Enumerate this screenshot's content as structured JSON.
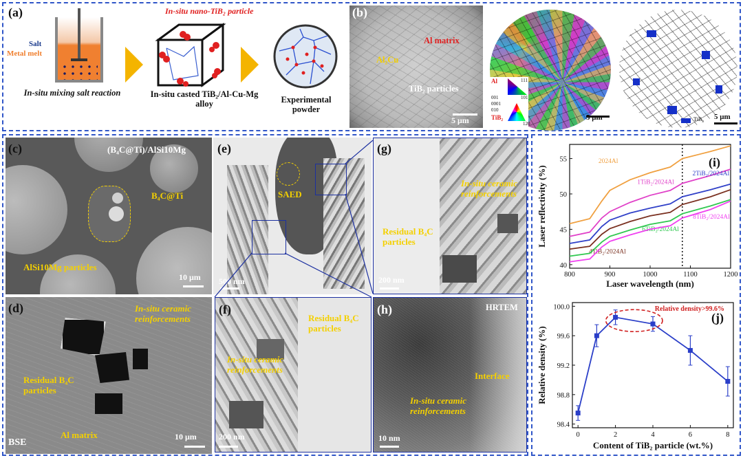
{
  "panel_a": {
    "label": "(a)",
    "salt": "Salt",
    "metal_melt": "Metal melt",
    "particle_label": "In-situ nano-TiB₂ particle",
    "step1": "In-situ mixing salt reaction",
    "step2": "In-situ casted TiB₂/Al-Cu-Mg alloy",
    "step3": "Experimental powder"
  },
  "panel_b": {
    "label": "(b)",
    "al_matrix": "Al matrix",
    "al2cu": "Al₂Cu",
    "tib2": "TiB₂ particles",
    "scale": "5 μm",
    "ebsd_al": "Al",
    "ebsd_tib2": "TiB₂",
    "ipf_001": "001",
    "ipf_101": "101",
    "ipf_111": "111",
    "ipf_0001": "0001",
    "ipf_010": "010",
    "ipf_120": "120",
    "scale2": "5 μm",
    "legend": "TiB₂",
    "scale3": "5 μm"
  },
  "panel_c": {
    "label": "(c)",
    "title": "(B₄C@Ti)/AlSi10Mg",
    "b4c": "B₄C@Ti",
    "alsi": "AlSi10Mg particles",
    "scale": "10 μm"
  },
  "panel_d": {
    "label": "(d)",
    "insitu": "In-situ ceramic reinforcements",
    "residual": "Residual B₄C particles",
    "matrix": "Al matrix",
    "bse": "BSE",
    "scale": "10 μm"
  },
  "panel_e": {
    "label": "(e)",
    "saed": "SAED",
    "scale": "500 nm"
  },
  "panel_f": {
    "label": "(f)",
    "residual": "Residual B₄C particles",
    "insitu": "In-situ ceramic reinforcements",
    "scale": "200 nm"
  },
  "panel_g": {
    "label": "(g)",
    "insitu": "In-situ ceramic reinforcements",
    "residual": "Residual B₄C particles",
    "scale": "200 nm"
  },
  "panel_h": {
    "label": "(h)",
    "hrtem": "HRTEM",
    "interface": "Interface",
    "insitu": "In-situ ceramic reinforcements",
    "scale": "10 nm"
  },
  "chart_i_label": "(i)",
  "chart_j_label": "(j)",
  "chart_data": [
    {
      "type": "line",
      "xlabel": "Laser wavelength (nm)",
      "ylabel": "Laser reflectivity (%)",
      "xlim": [
        800,
        1200
      ],
      "ylim": [
        39.5,
        57
      ],
      "xticks": [
        800,
        900,
        1000,
        1100,
        1200
      ],
      "yticks": [
        40,
        45,
        50,
        55
      ],
      "vline_x": 1080,
      "x": [
        800,
        850,
        880,
        900,
        950,
        1000,
        1050,
        1080,
        1150,
        1200
      ],
      "series": [
        {
          "name": "2024Al",
          "color": "#f0a040",
          "values": [
            45.8,
            46.5,
            49.0,
            50.5,
            52.0,
            53.0,
            53.8,
            55.0,
            56.0,
            56.8
          ]
        },
        {
          "name": "1TiB₂/2024Al",
          "color": "#e040c8",
          "values": [
            44.0,
            44.6,
            46.6,
            47.5,
            48.8,
            49.8,
            50.5,
            51.5,
            52.6,
            53.5
          ]
        },
        {
          "name": "2TiB₂/2024Al",
          "color": "#3040c8",
          "values": [
            43.0,
            43.5,
            45.4,
            46.3,
            47.3,
            48.0,
            48.6,
            49.6,
            50.6,
            51.4
          ]
        },
        {
          "name": "4TiB₂/2024Al",
          "color": "#7a3020",
          "values": [
            42.2,
            42.6,
            44.3,
            45.1,
            46.1,
            46.9,
            47.4,
            48.5,
            49.6,
            50.6
          ]
        },
        {
          "name": "6TiB₂/2024Al",
          "color": "#30c850",
          "values": [
            41.2,
            41.6,
            43.2,
            44.0,
            44.9,
            45.7,
            46.2,
            47.2,
            48.3,
            49.2
          ]
        },
        {
          "name": "8TiB₂/2024Al",
          "color": "#f040f0",
          "values": [
            40.4,
            40.8,
            42.5,
            43.3,
            44.2,
            45.0,
            45.5,
            46.6,
            47.8,
            49.0
          ]
        }
      ]
    },
    {
      "type": "line",
      "xlabel": "Content of TiB₂ particle (wt.%)",
      "ylabel": "Relative density (%)",
      "xlim": [
        -0.3,
        8.3
      ],
      "ylim": [
        98.35,
        100.05
      ],
      "xticks": [
        0,
        2,
        4,
        6,
        8
      ],
      "yticks": [
        98.4,
        98.8,
        99.2,
        99.6,
        100.0
      ],
      "annotation": "Relative density>99.6%",
      "color": "#2a3ec8",
      "x": [
        0,
        1,
        2,
        4,
        6,
        8
      ],
      "values": [
        98.55,
        99.6,
        99.85,
        99.76,
        99.4,
        98.98
      ],
      "errors": [
        0.1,
        0.15,
        0.1,
        0.1,
        0.2,
        0.2
      ]
    }
  ]
}
